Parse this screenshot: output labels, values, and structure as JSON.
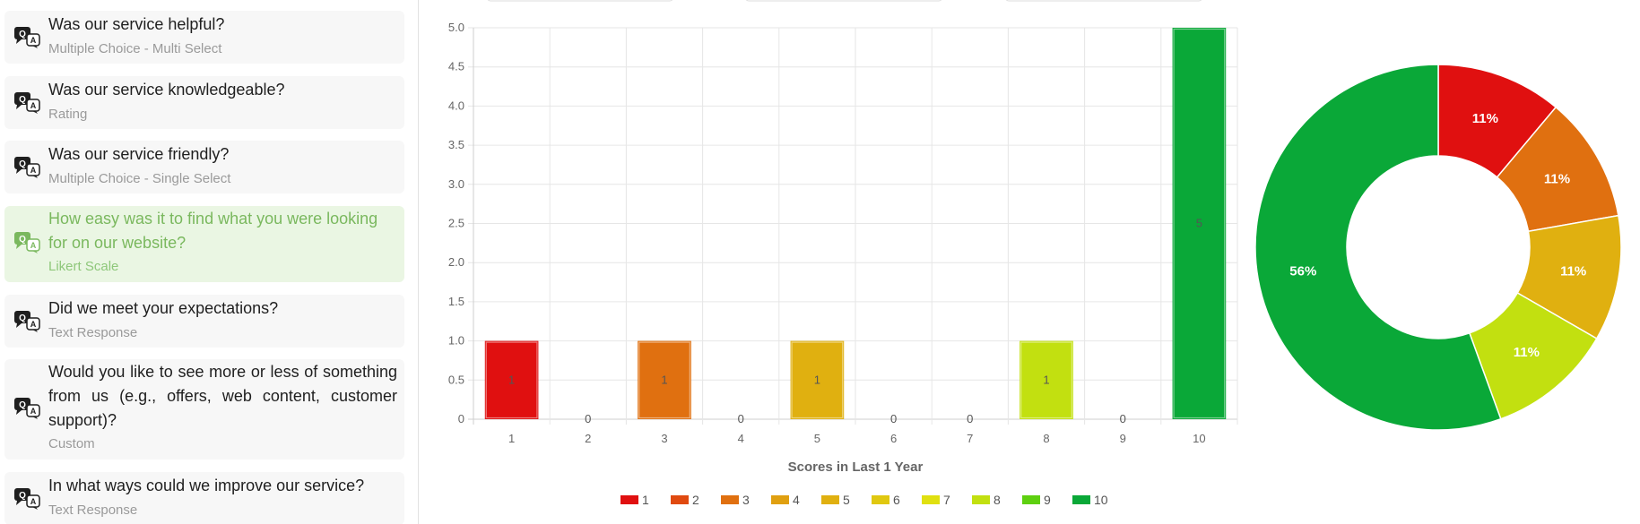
{
  "questions": [
    {
      "title": "Was our service helpful?",
      "type": "Multiple Choice - Multi Select",
      "active": false
    },
    {
      "title": "Was our service knowledgeable?",
      "type": "Rating",
      "active": false
    },
    {
      "title": "Was our service friendly?",
      "type": "Multiple Choice - Single Select",
      "active": false
    },
    {
      "title": "How easy was it to find what you were looking for on our website?",
      "type": "Likert Scale",
      "active": true
    },
    {
      "title": "Did we meet your expectations?",
      "type": "Text Response",
      "active": false
    },
    {
      "title": "Would you like to see more or less of something from us (e.g., offers, web content, customer support)?",
      "type": "Custom",
      "active": false
    },
    {
      "title": "In what ways could we improve our service?",
      "type": "Text Response",
      "active": false
    }
  ],
  "icons": {
    "question": "qa-chat-icon"
  },
  "colors": {
    "active_bg": "#eaf6e3",
    "active_text": "#7ab85e",
    "1": "#e01010",
    "2": "#e04a10",
    "3": "#e07010",
    "4": "#e0a010",
    "5": "#e0b010",
    "6": "#e0c810",
    "7": "#e0e010",
    "8": "#c2e010",
    "9": "#5ed010",
    "10": "#0aa838"
  },
  "chart_data": [
    {
      "type": "bar",
      "categories": [
        "1",
        "2",
        "3",
        "4",
        "5",
        "6",
        "7",
        "8",
        "9",
        "10"
      ],
      "values": [
        1,
        0,
        1,
        0,
        1,
        0,
        0,
        1,
        0,
        5
      ],
      "data_labels": [
        "1",
        "0",
        "1",
        "0",
        "1",
        "0",
        "0",
        "1",
        "0",
        "5"
      ],
      "bar_colors": [
        "#e01010",
        "#e04a10",
        "#e07010",
        "#e0a010",
        "#e0b010",
        "#e0c810",
        "#e0e010",
        "#c2e010",
        "#5ed010",
        "#0aa838"
      ],
      "xlabel": "Scores in Last 1 Year",
      "ylabel": "",
      "ylim": [
        0,
        5
      ],
      "yticks": [
        "0",
        "0.5",
        "1.0",
        "1.5",
        "2.0",
        "2.5",
        "3.0",
        "3.5",
        "4.0",
        "4.5",
        "5.0"
      ],
      "grid": true,
      "legend": {
        "position": "bottom",
        "entries": [
          {
            "label": "1",
            "color": "#e01010"
          },
          {
            "label": "2",
            "color": "#e04a10"
          },
          {
            "label": "3",
            "color": "#e07010"
          },
          {
            "label": "4",
            "color": "#e0a010"
          },
          {
            "label": "5",
            "color": "#e0b010"
          },
          {
            "label": "6",
            "color": "#e0c810"
          },
          {
            "label": "7",
            "color": "#e0e010"
          },
          {
            "label": "8",
            "color": "#c2e010"
          },
          {
            "label": "9",
            "color": "#5ed010"
          },
          {
            "label": "10",
            "color": "#0aa838"
          }
        ]
      }
    },
    {
      "type": "pie",
      "donut": true,
      "slices": [
        {
          "category": "1",
          "value": 1,
          "label": "11%",
          "color": "#e01010"
        },
        {
          "category": "3",
          "value": 1,
          "label": "11%",
          "color": "#e07010"
        },
        {
          "category": "5",
          "value": 1,
          "label": "11%",
          "color": "#e0b010"
        },
        {
          "category": "8",
          "value": 1,
          "label": "11%",
          "color": "#c2e010"
        },
        {
          "category": "10",
          "value": 5,
          "label": "56%",
          "color": "#0aa838"
        }
      ]
    }
  ]
}
